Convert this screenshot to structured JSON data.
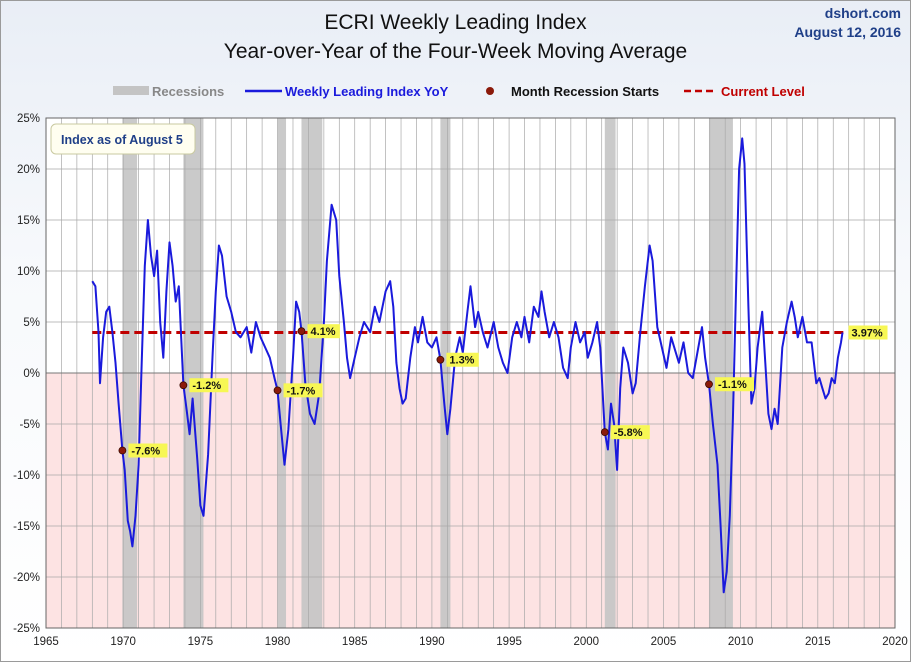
{
  "header": {
    "title_line1": "ECRI Weekly Leading Index",
    "title_line2": "Year-over-Year of the Four-Week Moving Average",
    "source": "dshort.com",
    "date": "August 12, 2016"
  },
  "legend": {
    "recessions": "Recessions",
    "series": "Weekly Leading Index YoY",
    "markers": "Month Recession Starts",
    "current": "Current Level"
  },
  "note": "Index as of August 5",
  "colors": {
    "series": "#1a1adc",
    "current_level": "#c00000",
    "recession_band": "#c4c4c4",
    "negative_zone": "#fde3e3",
    "marker": "#8b1a0a",
    "label_bg": "#f7f754",
    "legend_recession_text": "#888888",
    "note_text": "#1f3f88"
  },
  "chart_data": {
    "type": "line",
    "xlim": [
      1965,
      2020
    ],
    "ylim": [
      -25,
      25
    ],
    "x_ticks": [
      1965,
      1970,
      1975,
      1980,
      1985,
      1990,
      1995,
      2000,
      2005,
      2010,
      2015,
      2020
    ],
    "y_ticks": [
      25,
      20,
      15,
      10,
      5,
      0,
      -5,
      -10,
      -15,
      -20,
      -25
    ],
    "y_tick_labels": [
      "25%",
      "20%",
      "15%",
      "10%",
      "5%",
      "0%",
      "-5%",
      "-10%",
      "-15%",
      "-20%",
      "-25%"
    ],
    "grid": true,
    "legend_position": "top",
    "negative_zone_shaded": true,
    "recessions": [
      [
        1969.95,
        1970.9
      ],
      [
        1973.9,
        1975.2
      ],
      [
        1980.0,
        1980.55
      ],
      [
        1981.55,
        1982.9
      ],
      [
        1990.55,
        1991.2
      ],
      [
        2001.2,
        2001.9
      ],
      [
        2007.95,
        2009.5
      ]
    ],
    "recession_starts": [
      {
        "x": 1969.95,
        "y": -7.6,
        "label": "-7.6%"
      },
      {
        "x": 1973.9,
        "y": -1.2,
        "label": "-1.2%"
      },
      {
        "x": 1980.0,
        "y": -1.7,
        "label": "-1.7%"
      },
      {
        "x": 1981.55,
        "y": 4.1,
        "label": "4.1%"
      },
      {
        "x": 1990.55,
        "y": 1.3,
        "label": "1.3%"
      },
      {
        "x": 2001.2,
        "y": -5.8,
        "label": "-5.8%"
      },
      {
        "x": 2007.95,
        "y": -1.1,
        "label": "-1.1%"
      }
    ],
    "current_level": {
      "value": 3.97,
      "label": "3.97%"
    },
    "series": [
      {
        "name": "Weekly Leading Index YoY",
        "points": [
          [
            1968.0,
            9.0
          ],
          [
            1968.2,
            8.5
          ],
          [
            1968.4,
            4.0
          ],
          [
            1968.5,
            -1.0
          ],
          [
            1968.7,
            3.5
          ],
          [
            1968.9,
            6.0
          ],
          [
            1969.1,
            6.5
          ],
          [
            1969.3,
            4.0
          ],
          [
            1969.5,
            1.0
          ],
          [
            1969.7,
            -3.0
          ],
          [
            1969.95,
            -7.6
          ],
          [
            1970.1,
            -9.5
          ],
          [
            1970.3,
            -14.5
          ],
          [
            1970.45,
            -15.5
          ],
          [
            1970.6,
            -17.0
          ],
          [
            1970.8,
            -14.0
          ],
          [
            1971.0,
            -9.0
          ],
          [
            1971.2,
            1.0
          ],
          [
            1971.4,
            10.5
          ],
          [
            1971.6,
            15.0
          ],
          [
            1971.8,
            11.5
          ],
          [
            1972.0,
            9.5
          ],
          [
            1972.2,
            12.0
          ],
          [
            1972.4,
            5.0
          ],
          [
            1972.6,
            1.5
          ],
          [
            1972.8,
            8.0
          ],
          [
            1973.0,
            12.8
          ],
          [
            1973.2,
            10.5
          ],
          [
            1973.4,
            7.0
          ],
          [
            1973.6,
            8.5
          ],
          [
            1973.9,
            -1.2
          ],
          [
            1974.1,
            -3.5
          ],
          [
            1974.3,
            -6.0
          ],
          [
            1974.5,
            -2.5
          ],
          [
            1974.8,
            -8.5
          ],
          [
            1975.0,
            -13.0
          ],
          [
            1975.2,
            -14.0
          ],
          [
            1975.5,
            -8.0
          ],
          [
            1975.8,
            2.0
          ],
          [
            1976.0,
            8.0
          ],
          [
            1976.2,
            12.5
          ],
          [
            1976.4,
            11.5
          ],
          [
            1976.7,
            7.5
          ],
          [
            1977.0,
            6.0
          ],
          [
            1977.3,
            4.0
          ],
          [
            1977.6,
            3.5
          ],
          [
            1978.0,
            4.5
          ],
          [
            1978.3,
            2.0
          ],
          [
            1978.6,
            5.0
          ],
          [
            1978.9,
            3.5
          ],
          [
            1979.2,
            2.5
          ],
          [
            1979.5,
            1.5
          ],
          [
            1979.8,
            -0.5
          ],
          [
            1980.0,
            -1.7
          ],
          [
            1980.2,
            -5.0
          ],
          [
            1980.45,
            -9.0
          ],
          [
            1980.7,
            -5.5
          ],
          [
            1981.0,
            1.5
          ],
          [
            1981.2,
            7.0
          ],
          [
            1981.4,
            6.0
          ],
          [
            1981.55,
            4.1
          ],
          [
            1981.8,
            -1.0
          ],
          [
            1982.1,
            -4.0
          ],
          [
            1982.4,
            -5.0
          ],
          [
            1982.7,
            -2.0
          ],
          [
            1983.0,
            5.0
          ],
          [
            1983.2,
            11.0
          ],
          [
            1983.5,
            16.5
          ],
          [
            1983.8,
            15.0
          ],
          [
            1984.0,
            9.5
          ],
          [
            1984.3,
            5.0
          ],
          [
            1984.5,
            1.5
          ],
          [
            1984.7,
            -0.5
          ],
          [
            1985.0,
            1.5
          ],
          [
            1985.3,
            3.5
          ],
          [
            1985.6,
            5.0
          ],
          [
            1986.0,
            4.0
          ],
          [
            1986.3,
            6.5
          ],
          [
            1986.6,
            5.0
          ],
          [
            1987.0,
            8.0
          ],
          [
            1987.3,
            9.0
          ],
          [
            1987.5,
            6.5
          ],
          [
            1987.7,
            1.0
          ],
          [
            1987.9,
            -1.5
          ],
          [
            1988.1,
            -3.0
          ],
          [
            1988.3,
            -2.5
          ],
          [
            1988.6,
            1.5
          ],
          [
            1988.9,
            4.5
          ],
          [
            1989.1,
            3.0
          ],
          [
            1989.4,
            5.5
          ],
          [
            1989.7,
            3.0
          ],
          [
            1990.0,
            2.5
          ],
          [
            1990.3,
            3.5
          ],
          [
            1990.55,
            1.3
          ],
          [
            1990.8,
            -3.0
          ],
          [
            1991.0,
            -6.0
          ],
          [
            1991.2,
            -3.5
          ],
          [
            1991.5,
            1.5
          ],
          [
            1991.8,
            3.5
          ],
          [
            1992.0,
            2.0
          ],
          [
            1992.3,
            6.0
          ],
          [
            1992.5,
            8.5
          ],
          [
            1992.8,
            4.5
          ],
          [
            1993.0,
            6.0
          ],
          [
            1993.3,
            4.0
          ],
          [
            1993.6,
            2.5
          ],
          [
            1994.0,
            5.0
          ],
          [
            1994.3,
            2.5
          ],
          [
            1994.6,
            1.0
          ],
          [
            1994.9,
            0.0
          ],
          [
            1995.2,
            3.5
          ],
          [
            1995.5,
            5.0
          ],
          [
            1995.8,
            3.5
          ],
          [
            1996.0,
            5.5
          ],
          [
            1996.3,
            3.0
          ],
          [
            1996.6,
            6.5
          ],
          [
            1996.9,
            5.5
          ],
          [
            1997.1,
            8.0
          ],
          [
            1997.3,
            6.0
          ],
          [
            1997.6,
            3.5
          ],
          [
            1997.9,
            5.0
          ],
          [
            1998.2,
            3.5
          ],
          [
            1998.5,
            0.5
          ],
          [
            1998.8,
            -0.5
          ],
          [
            1999.0,
            2.5
          ],
          [
            1999.3,
            5.0
          ],
          [
            1999.6,
            3.0
          ],
          [
            1999.9,
            4.0
          ],
          [
            2000.1,
            1.5
          ],
          [
            2000.4,
            3.0
          ],
          [
            2000.7,
            5.0
          ],
          [
            2000.9,
            2.5
          ],
          [
            2001.2,
            -5.8
          ],
          [
            2001.4,
            -7.5
          ],
          [
            2001.6,
            -3.0
          ],
          [
            2001.8,
            -5.0
          ],
          [
            2002.0,
            -9.5
          ],
          [
            2002.2,
            -1.5
          ],
          [
            2002.4,
            2.5
          ],
          [
            2002.7,
            1.0
          ],
          [
            2003.0,
            -2.0
          ],
          [
            2003.2,
            -1.0
          ],
          [
            2003.5,
            4.0
          ],
          [
            2003.8,
            8.5
          ],
          [
            2004.1,
            12.5
          ],
          [
            2004.3,
            11.0
          ],
          [
            2004.6,
            4.5
          ],
          [
            2004.9,
            2.5
          ],
          [
            2005.2,
            0.5
          ],
          [
            2005.5,
            3.5
          ],
          [
            2005.8,
            2.0
          ],
          [
            2006.0,
            1.0
          ],
          [
            2006.3,
            3.0
          ],
          [
            2006.6,
            0.0
          ],
          [
            2006.9,
            -0.5
          ],
          [
            2007.2,
            2.0
          ],
          [
            2007.5,
            4.5
          ],
          [
            2007.7,
            1.5
          ],
          [
            2007.95,
            -1.1
          ],
          [
            2008.2,
            -5.0
          ],
          [
            2008.5,
            -9.0
          ],
          [
            2008.7,
            -15.0
          ],
          [
            2008.9,
            -21.5
          ],
          [
            2009.1,
            -19.5
          ],
          [
            2009.3,
            -14.0
          ],
          [
            2009.5,
            -4.5
          ],
          [
            2009.7,
            8.0
          ],
          [
            2009.9,
            20.0
          ],
          [
            2010.1,
            23.0
          ],
          [
            2010.25,
            20.5
          ],
          [
            2010.5,
            6.5
          ],
          [
            2010.7,
            -3.0
          ],
          [
            2010.9,
            -1.5
          ],
          [
            2011.1,
            2.5
          ],
          [
            2011.4,
            6.0
          ],
          [
            2011.6,
            1.0
          ],
          [
            2011.8,
            -4.0
          ],
          [
            2012.0,
            -5.5
          ],
          [
            2012.2,
            -3.5
          ],
          [
            2012.4,
            -5.0
          ],
          [
            2012.7,
            2.5
          ],
          [
            2013.0,
            5.0
          ],
          [
            2013.3,
            7.0
          ],
          [
            2013.5,
            5.5
          ],
          [
            2013.7,
            3.5
          ],
          [
            2014.0,
            5.5
          ],
          [
            2014.3,
            3.0
          ],
          [
            2014.6,
            3.0
          ],
          [
            2014.9,
            -1.0
          ],
          [
            2015.1,
            -0.5
          ],
          [
            2015.3,
            -1.5
          ],
          [
            2015.5,
            -2.5
          ],
          [
            2015.7,
            -2.0
          ],
          [
            2015.9,
            -0.5
          ],
          [
            2016.1,
            -1.0
          ],
          [
            2016.3,
            1.5
          ],
          [
            2016.5,
            3.0
          ],
          [
            2016.6,
            3.97
          ]
        ]
      }
    ]
  }
}
